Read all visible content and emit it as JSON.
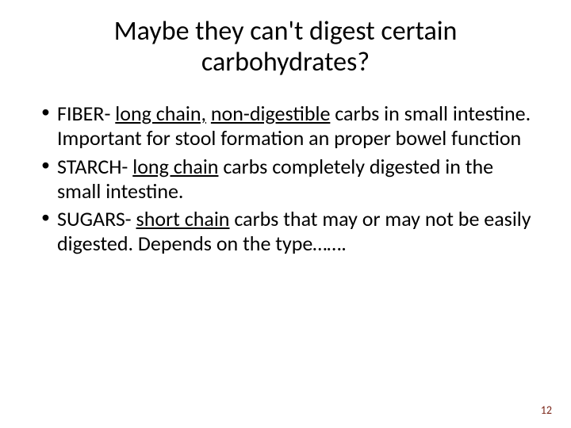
{
  "title": "Maybe they can't digest certain carbohydrates?",
  "bullets": [
    {
      "prefix": "FIBER- ",
      "underlined": "long chain,",
      "mid": " ",
      "underlined2": "non-digestible",
      "rest": " carbs  in small intestine. Important for stool formation an proper bowel function"
    },
    {
      "prefix": "STARCH- ",
      "underlined": "long chain",
      "rest": " carbs completely digested in the small intestine."
    },
    {
      "prefix": "SUGARS- ",
      "underlined": "short chain",
      "rest": " carbs that may or may not be easily digested. Depends on the type……."
    }
  ],
  "pageNumber": "12",
  "styling": {
    "background_color": "#ffffff",
    "title_fontsize": 34,
    "title_color": "#000000",
    "body_fontsize": 26,
    "body_color": "#000000",
    "page_number_color": "#7a2518",
    "page_number_fontsize": 14,
    "font_family": "Calibri"
  }
}
